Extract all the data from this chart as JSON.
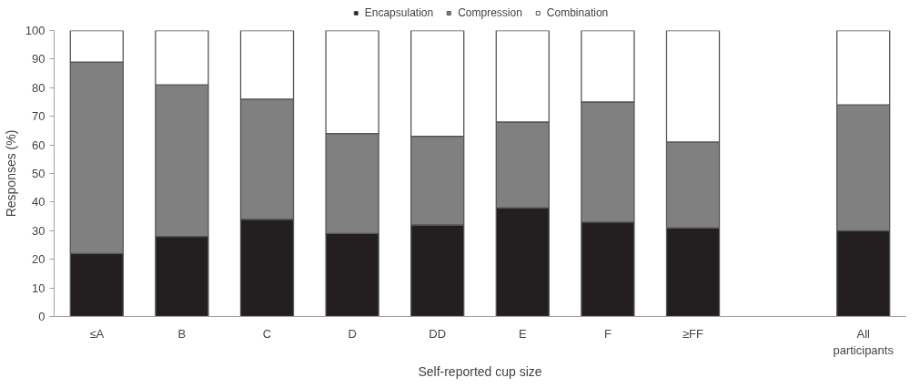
{
  "chart_data": {
    "type": "bar",
    "stacked": true,
    "xlabel": "Self-reported cup size",
    "ylabel": "Responses (%)",
    "categories": [
      "≤A",
      "B",
      "C",
      "D",
      "DD",
      "E",
      "F",
      "≥FF",
      null,
      "All\nparticipants"
    ],
    "series": [
      {
        "name": "Encapsulation",
        "color": "#231f20",
        "values": [
          22,
          28,
          34,
          29,
          32,
          38,
          33,
          31,
          null,
          30
        ]
      },
      {
        "name": "Compression",
        "color": "#808080",
        "values": [
          67,
          53,
          42,
          35,
          31,
          30,
          42,
          30,
          null,
          44
        ]
      },
      {
        "name": "Combination",
        "color": "#ffffff",
        "values": [
          11,
          19,
          24,
          36,
          37,
          32,
          25,
          39,
          null,
          26
        ]
      }
    ],
    "ylim": [
      0,
      100
    ],
    "yticks": [
      0,
      10,
      20,
      30,
      40,
      50,
      60,
      70,
      80,
      90,
      100
    ],
    "grid": false,
    "legend": "top"
  }
}
